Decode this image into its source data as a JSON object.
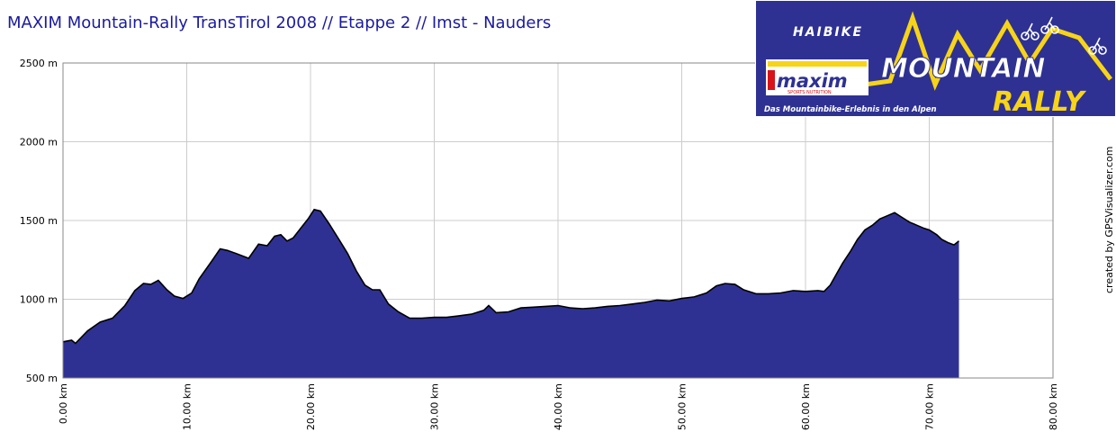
{
  "title": "MAXIM Mountain-Rally TransTirol 2008 // Etappe 2 // Imst - Nauders",
  "credit": "created by GPSVisualizer.com",
  "banner": {
    "brand_top": "HAIBIKE",
    "brand_maxim": "maxim",
    "brand_maxim_sub": "SPORTS NUTRITION",
    "word1": "MOUNTAIN",
    "word2": "RALLY",
    "tagline": "Das Mountainbike-Erlebnis in den Alpen",
    "colors": {
      "bg": "#2e3192",
      "yellow": "#f7d417",
      "red": "#d7141a"
    }
  },
  "chart_data": {
    "type": "area",
    "title": "MAXIM Mountain-Rally TransTirol 2008 // Etappe 2 // Imst - Nauders",
    "xlim": [
      0,
      80
    ],
    "ylim": [
      500,
      2500
    ],
    "x_ticks": [
      0,
      10,
      20,
      30,
      40,
      50,
      60,
      70,
      80
    ],
    "x_tick_labels": [
      "0.00 km",
      "10.00 km",
      "20.00 km",
      "30.00 km",
      "40.00 km",
      "50.00 km",
      "60.00 km",
      "70.00 km",
      "80.00 km"
    ],
    "y_ticks": [
      500,
      1000,
      1500,
      2000,
      2500
    ],
    "y_tick_labels": [
      "500 m",
      "1000 m",
      "1500 m",
      "2000 m",
      "2500 m"
    ],
    "grid": true,
    "fill_color": "#2e3192",
    "line_color": "#000000",
    "series": [
      {
        "x": [
          0,
          0.7,
          1,
          2,
          3,
          4,
          5,
          5.8,
          6.5,
          7.1,
          7.7,
          8.4,
          9,
          9.7,
          10.4,
          11,
          12,
          12.7,
          13.3,
          14,
          15,
          15.8,
          16.5,
          17.1,
          17.6,
          18.1,
          18.6,
          19.2,
          19.8,
          20.3,
          20.8,
          21.5,
          22.3,
          23,
          23.7,
          24.4,
          25,
          25.6,
          26.3,
          27.1,
          28,
          29,
          30,
          31,
          32,
          33,
          34,
          34.4,
          35,
          36,
          37,
          38,
          39,
          40,
          41,
          42,
          43,
          44,
          45,
          46,
          47,
          48,
          49,
          50,
          51,
          52,
          52.8,
          53.5,
          54.3,
          55,
          56,
          57,
          58,
          59,
          60,
          61,
          61.5,
          62,
          62.5,
          63,
          63.6,
          64.2,
          64.8,
          65.4,
          66,
          66.6,
          67.2,
          67.8,
          68.4,
          69,
          69.6,
          70,
          70.6,
          71,
          71.5,
          72,
          72.4
        ],
        "y": [
          730,
          740,
          720,
          800,
          855,
          880,
          960,
          1055,
          1100,
          1095,
          1120,
          1060,
          1020,
          1005,
          1040,
          1130,
          1240,
          1320,
          1310,
          1290,
          1260,
          1350,
          1340,
          1400,
          1410,
          1370,
          1390,
          1450,
          1510,
          1570,
          1560,
          1480,
          1380,
          1290,
          1180,
          1090,
          1060,
          1060,
          970,
          920,
          880,
          880,
          885,
          885,
          895,
          905,
          930,
          960,
          915,
          920,
          945,
          950,
          955,
          960,
          945,
          940,
          945,
          955,
          960,
          970,
          980,
          995,
          990,
          1005,
          1015,
          1040,
          1085,
          1100,
          1095,
          1060,
          1035,
          1035,
          1040,
          1055,
          1050,
          1055,
          1050,
          1090,
          1160,
          1230,
          1300,
          1380,
          1440,
          1470,
          1510,
          1530,
          1550,
          1520,
          1490,
          1470,
          1450,
          1440,
          1410,
          1380,
          1360,
          1345,
          1370
        ]
      }
    ]
  }
}
